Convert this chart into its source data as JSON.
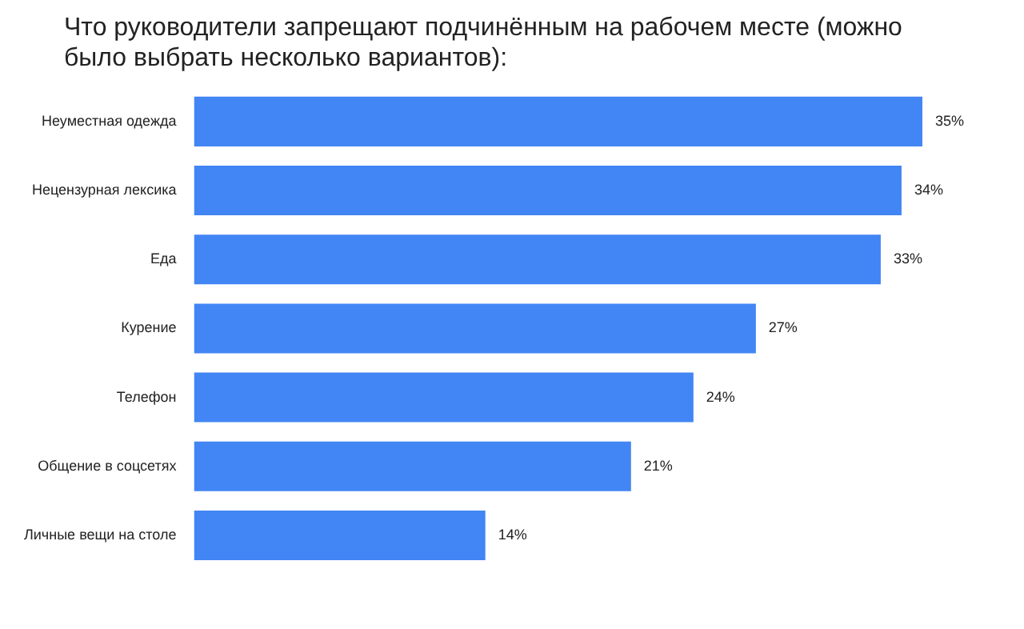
{
  "chart_data": {
    "type": "bar",
    "orientation": "horizontal",
    "title": "Что руководители запрещают подчинённым на рабочем месте (можно было выбрать несколько вариантов):",
    "categories": [
      "Неуместная одежда",
      "Нецензурная лексика",
      "Еда",
      "Курение",
      "Телефон",
      "Общение в соцсетях",
      "Личные вещи на столе"
    ],
    "values": [
      35,
      34,
      33,
      27,
      24,
      21,
      14
    ],
    "value_labels": [
      "35%",
      "34%",
      "33%",
      "27%",
      "24%",
      "21%",
      "14%"
    ],
    "color": "#4285f4",
    "grid": false,
    "legend": false
  }
}
